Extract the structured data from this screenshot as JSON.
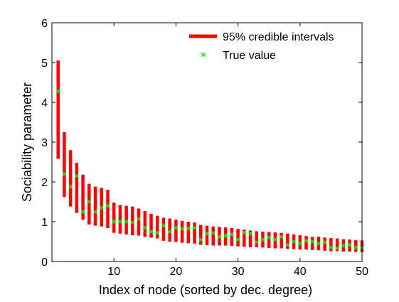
{
  "chart_data": {
    "type": "errorbar",
    "xlabel": "Index of node (sorted by dec. degree)",
    "ylabel": "Sociability parameter",
    "xlim": [
      0,
      50
    ],
    "ylim": [
      0,
      6
    ],
    "xticks": [
      10,
      20,
      30,
      40,
      50
    ],
    "yticks": [
      0,
      1,
      2,
      3,
      4,
      5,
      6
    ],
    "legend_position": "top-right",
    "legend": {
      "intervals_label": "95% credible intervals",
      "true_label": "True value"
    },
    "colors": {
      "intervals": "#ff0000",
      "true_value": "#00ff00",
      "axes": "#000000"
    },
    "x": [
      1,
      2,
      3,
      4,
      5,
      6,
      7,
      8,
      9,
      10,
      11,
      12,
      13,
      14,
      15,
      16,
      17,
      18,
      19,
      20,
      21,
      22,
      23,
      24,
      25,
      26,
      27,
      28,
      29,
      30,
      31,
      32,
      33,
      34,
      35,
      36,
      37,
      38,
      39,
      40,
      41,
      42,
      43,
      44,
      45,
      46,
      47,
      48,
      49,
      50
    ],
    "interval_lower": [
      2.58,
      1.62,
      1.38,
      1.22,
      1.05,
      0.93,
      0.9,
      0.88,
      0.84,
      0.72,
      0.7,
      0.68,
      0.66,
      0.65,
      0.62,
      0.6,
      0.58,
      0.52,
      0.5,
      0.49,
      0.47,
      0.46,
      0.45,
      0.42,
      0.41,
      0.4,
      0.4,
      0.4,
      0.39,
      0.38,
      0.37,
      0.36,
      0.36,
      0.35,
      0.34,
      0.33,
      0.33,
      0.32,
      0.31,
      0.3,
      0.3,
      0.29,
      0.28,
      0.27,
      0.26,
      0.26,
      0.25,
      0.25,
      0.24,
      0.24
    ],
    "interval_upper": [
      5.05,
      3.25,
      2.8,
      2.48,
      2.18,
      1.95,
      1.88,
      1.85,
      1.8,
      1.48,
      1.42,
      1.4,
      1.38,
      1.33,
      1.27,
      1.2,
      1.15,
      1.1,
      1.08,
      1.05,
      1.02,
      1.0,
      0.98,
      0.92,
      0.9,
      0.88,
      0.87,
      0.86,
      0.84,
      0.82,
      0.8,
      0.78,
      0.76,
      0.75,
      0.74,
      0.73,
      0.72,
      0.7,
      0.68,
      0.66,
      0.64,
      0.62,
      0.62,
      0.6,
      0.59,
      0.58,
      0.56,
      0.55,
      0.54,
      0.53
    ],
    "true_value": [
      4.28,
      2.2,
      1.88,
      2.15,
      1.25,
      1.5,
      1.25,
      1.35,
      1.4,
      1.0,
      1.0,
      1.0,
      0.98,
      1.07,
      0.85,
      0.75,
      0.72,
      0.9,
      0.75,
      0.85,
      0.82,
      0.83,
      0.85,
      0.55,
      0.7,
      0.72,
      0.62,
      0.65,
      0.68,
      0.55,
      0.73,
      0.7,
      0.48,
      0.55,
      0.6,
      0.55,
      0.62,
      0.42,
      0.5,
      0.45,
      0.52,
      0.5,
      0.45,
      0.48,
      0.35,
      0.33,
      0.4,
      0.42,
      0.35,
      0.35
    ]
  }
}
